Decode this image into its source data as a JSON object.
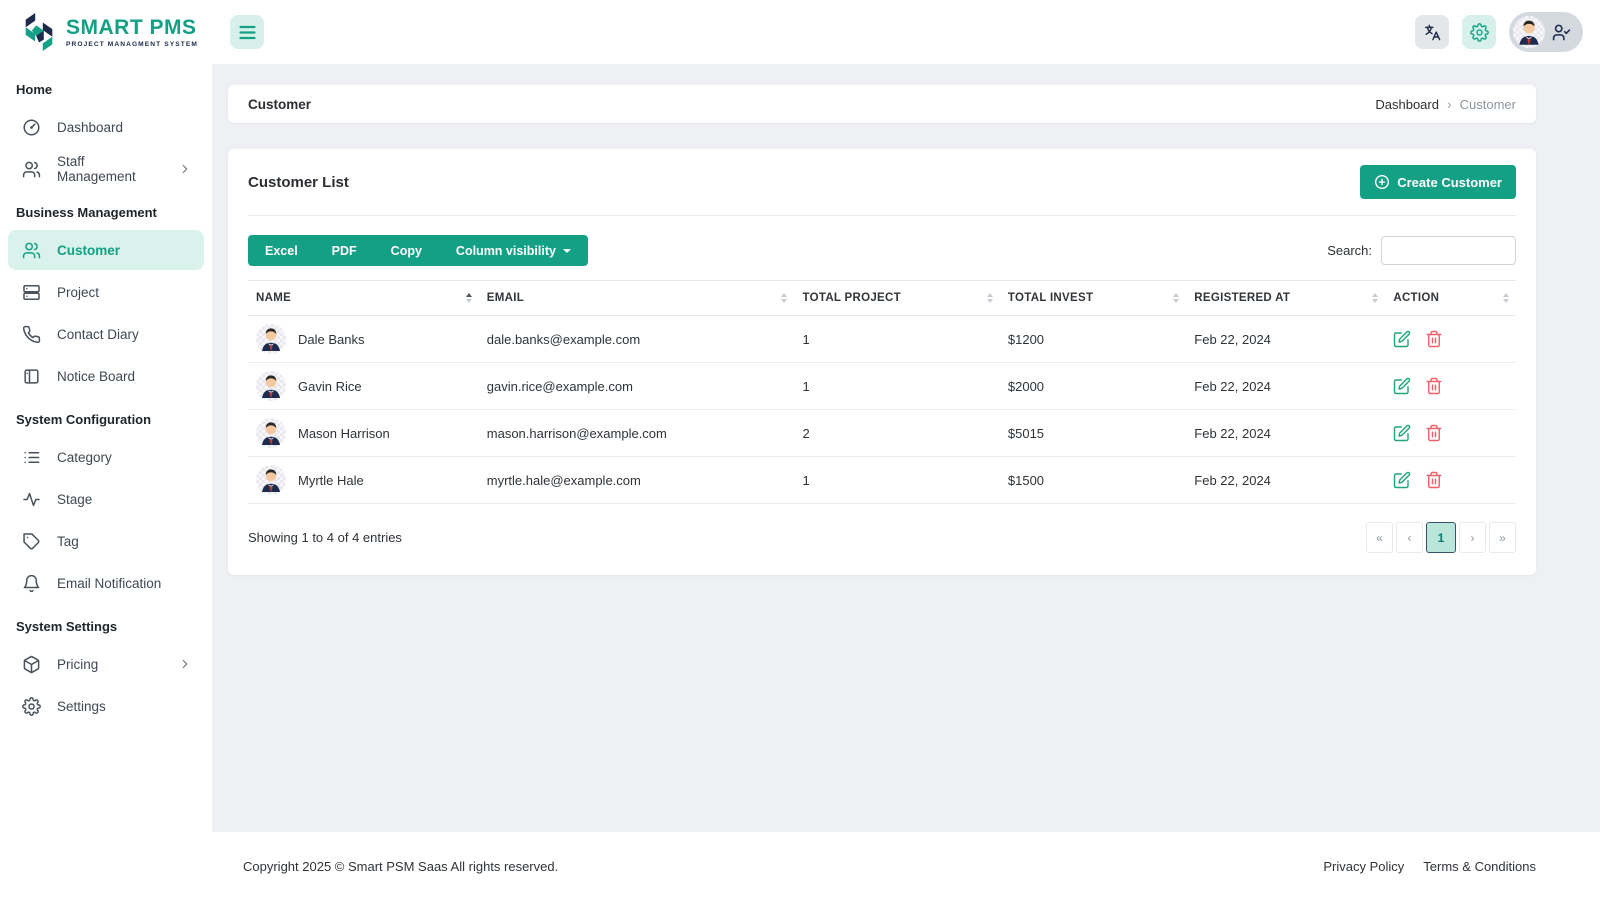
{
  "brand": {
    "name": "SMART PMS",
    "tagline": "PROJECT MANAGMENT SYSTEM"
  },
  "sidebar": {
    "sections": [
      {
        "heading": "Home",
        "items": [
          {
            "label": "Dashboard"
          },
          {
            "label": "Staff Management"
          }
        ]
      },
      {
        "heading": "Business Management",
        "items": [
          {
            "label": "Customer"
          },
          {
            "label": "Project"
          },
          {
            "label": "Contact Diary"
          },
          {
            "label": "Notice Board"
          }
        ]
      },
      {
        "heading": "System Configuration",
        "items": [
          {
            "label": "Category"
          },
          {
            "label": "Stage"
          },
          {
            "label": "Tag"
          },
          {
            "label": "Email Notification"
          }
        ]
      },
      {
        "heading": "System Settings",
        "items": [
          {
            "label": "Pricing"
          },
          {
            "label": "Settings"
          }
        ]
      }
    ]
  },
  "page": {
    "title": "Customer",
    "breadcrumb": {
      "root": "Dashboard",
      "separator": "›",
      "current": "Customer"
    }
  },
  "card": {
    "title": "Customer List",
    "create_button_label": "Create Customer"
  },
  "toolbar": {
    "export_buttons": [
      "Excel",
      "PDF",
      "Copy"
    ],
    "column_visibility_label": "Column visibility",
    "search_label": "Search:"
  },
  "table": {
    "headers": [
      {
        "label": "NAME",
        "sort": "asc"
      },
      {
        "label": "EMAIL"
      },
      {
        "label": "TOTAL PROJECT"
      },
      {
        "label": "TOTAL INVEST"
      },
      {
        "label": "REGISTERED AT"
      },
      {
        "label": "ACTION"
      }
    ],
    "rows": [
      {
        "name": "Dale Banks",
        "email": "dale.banks@example.com",
        "total_project": "1",
        "total_invest": "$1200",
        "registered_at": "Feb 22, 2024"
      },
      {
        "name": "Gavin Rice",
        "email": "gavin.rice@example.com",
        "total_project": "1",
        "total_invest": "$2000",
        "registered_at": "Feb 22, 2024"
      },
      {
        "name": "Mason Harrison",
        "email": "mason.harrison@example.com",
        "total_project": "2",
        "total_invest": "$5015",
        "registered_at": "Feb 22, 2024"
      },
      {
        "name": "Myrtle Hale",
        "email": "myrtle.hale@example.com",
        "total_project": "1",
        "total_invest": "$1500",
        "registered_at": "Feb 22, 2024"
      }
    ],
    "info": "Showing 1 to 4 of 4 entries",
    "pagination": {
      "first": "«",
      "prev": "‹",
      "page": "1",
      "next": "›",
      "last": "»"
    }
  },
  "footer": {
    "copyright": "Copyright 2025 © Smart PSM Saas All rights reserved.",
    "links": [
      "Privacy Policy",
      "Terms & Conditions"
    ]
  },
  "colors": {
    "primary": "#14a085",
    "primary_light": "#d7f0ea",
    "navy": "#1e2a4a",
    "danger": "#f0616a"
  }
}
